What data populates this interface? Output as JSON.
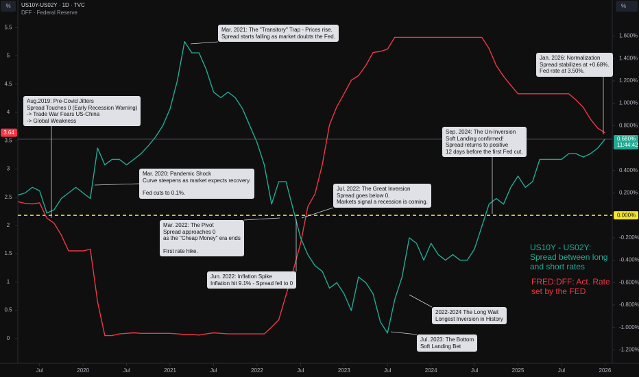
{
  "chart_data": {
    "type": "line",
    "title": "US10Y-US02Y · 1D · TVC",
    "subtitle": "DFF · Federal Reserve",
    "unit_buttons": [
      "%",
      "%"
    ],
    "x": [
      "2019-04",
      "2019-05",
      "2019-06",
      "2019-07",
      "2019-08",
      "2019-09",
      "2019-10",
      "2019-11",
      "2019-12",
      "2020-01",
      "2020-02",
      "2020-03",
      "2020-04",
      "2020-05",
      "2020-06",
      "2020-07",
      "2020-08",
      "2020-09",
      "2020-10",
      "2020-11",
      "2020-12",
      "2021-01",
      "2021-02",
      "2021-03",
      "2021-04",
      "2021-05",
      "2021-06",
      "2021-07",
      "2021-08",
      "2021-09",
      "2021-10",
      "2021-11",
      "2021-12",
      "2022-01",
      "2022-02",
      "2022-03",
      "2022-04",
      "2022-05",
      "2022-06",
      "2022-07",
      "2022-08",
      "2022-09",
      "2022-10",
      "2022-11",
      "2022-12",
      "2023-01",
      "2023-02",
      "2023-03",
      "2023-04",
      "2023-05",
      "2023-06",
      "2023-07",
      "2023-08",
      "2023-09",
      "2023-10",
      "2023-11",
      "2023-12",
      "2024-01",
      "2024-02",
      "2024-03",
      "2024-04",
      "2024-05",
      "2024-06",
      "2024-07",
      "2024-08",
      "2024-09",
      "2024-10",
      "2024-11",
      "2024-12",
      "2025-01",
      "2025-02",
      "2025-03",
      "2025-04",
      "2025-05",
      "2025-06",
      "2025-07",
      "2025-08",
      "2025-09",
      "2025-10",
      "2025-11",
      "2025-12",
      "2026-01"
    ],
    "xlim": [
      "2019-04",
      "2026-02"
    ],
    "xticks": [
      {
        "value": "2019-07",
        "label": "Jul"
      },
      {
        "value": "2020-01",
        "label": "2020"
      },
      {
        "value": "2020-07",
        "label": "Jul"
      },
      {
        "value": "2021-01",
        "label": "2021"
      },
      {
        "value": "2021-07",
        "label": "Jul"
      },
      {
        "value": "2022-01",
        "label": "2022"
      },
      {
        "value": "2022-07",
        "label": "Jul"
      },
      {
        "value": "2023-01",
        "label": "2023"
      },
      {
        "value": "2023-07",
        "label": "Jul"
      },
      {
        "value": "2024-01",
        "label": "2024"
      },
      {
        "value": "2024-07",
        "label": "Jul"
      },
      {
        "value": "2025-01",
        "label": "2025"
      },
      {
        "value": "2025-07",
        "label": "Jul"
      },
      {
        "value": "2026-01",
        "label": "2026"
      }
    ],
    "ylim": [
      -0.44,
      5.65
    ],
    "yticks": [
      0,
      0.5,
      1,
      1.5,
      2,
      2.5,
      3,
      3.5,
      4,
      4.5,
      5,
      5.5
    ],
    "y2lim": [
      -1.32,
      1.75
    ],
    "y2ticks": [
      {
        "value": 1.6,
        "label": "1.600%"
      },
      {
        "value": 1.4,
        "label": "1.400%"
      },
      {
        "value": 1.2,
        "label": "1.200%"
      },
      {
        "value": 1.0,
        "label": "1.000%"
      },
      {
        "value": 0.8,
        "label": "0.800%"
      },
      {
        "value": 0.6,
        "label": "0.600%"
      },
      {
        "value": 0.4,
        "label": "0.400%"
      },
      {
        "value": 0.2,
        "label": "0.200%"
      },
      {
        "value": -0.2,
        "label": "-0.200%"
      },
      {
        "value": -0.4,
        "label": "-0.400%"
      },
      {
        "value": -0.6,
        "label": "-0.600%"
      },
      {
        "value": -0.8,
        "label": "-0.800%"
      },
      {
        "value": -1.0,
        "label": "-1.000%"
      },
      {
        "value": -1.2,
        "label": "-1.200%"
      }
    ],
    "grid": false,
    "reference_line": {
      "value": 0,
      "label": "0.000%",
      "color": "#f5e52b"
    },
    "series": [
      {
        "name": "FRED:DFF: Act. Rate set by the FED",
        "color": "#f23645",
        "axis": "y",
        "last_label": "3.64",
        "values": [
          2.42,
          2.39,
          2.38,
          2.4,
          2.13,
          2.04,
          1.83,
          1.55,
          1.55,
          1.55,
          1.58,
          0.65,
          0.05,
          0.05,
          0.08,
          0.09,
          0.1,
          0.09,
          0.09,
          0.09,
          0.09,
          0.09,
          0.08,
          0.07,
          0.07,
          0.06,
          0.08,
          0.1,
          0.09,
          0.08,
          0.08,
          0.08,
          0.08,
          0.08,
          0.08,
          0.2,
          0.33,
          0.77,
          1.21,
          1.68,
          2.33,
          2.56,
          3.08,
          3.78,
          4.1,
          4.33,
          4.57,
          4.65,
          4.83,
          5.06,
          5.08,
          5.12,
          5.33,
          5.33,
          5.33,
          5.33,
          5.33,
          5.33,
          5.33,
          5.33,
          5.33,
          5.33,
          5.33,
          5.33,
          5.33,
          5.13,
          4.83,
          4.64,
          4.48,
          4.33,
          4.33,
          4.33,
          4.33,
          4.33,
          4.33,
          4.33,
          4.33,
          4.22,
          4.09,
          3.88,
          3.72,
          3.64
        ]
      },
      {
        "name": "US10Y - US02Y: Spread between long and short rates",
        "color": "#22ab94",
        "axis": "y2",
        "last_label": "0.680%",
        "countdown": "11:44:42",
        "values": [
          0.18,
          0.2,
          0.25,
          0.22,
          0.02,
          0.05,
          0.15,
          0.2,
          0.25,
          0.2,
          0.15,
          0.6,
          0.45,
          0.5,
          0.5,
          0.45,
          0.5,
          0.55,
          0.62,
          0.7,
          0.8,
          0.95,
          1.2,
          1.55,
          1.45,
          1.45,
          1.3,
          1.1,
          1.05,
          1.1,
          1.05,
          0.95,
          0.8,
          0.65,
          0.45,
          0.1,
          0.3,
          0.3,
          0.05,
          -0.2,
          -0.35,
          -0.45,
          -0.5,
          -0.65,
          -0.6,
          -0.7,
          -0.85,
          -0.55,
          -0.6,
          -0.7,
          -0.95,
          -1.05,
          -0.75,
          -0.55,
          -0.2,
          -0.25,
          -0.4,
          -0.25,
          -0.35,
          -0.4,
          -0.35,
          -0.4,
          -0.4,
          -0.3,
          -0.1,
          0.1,
          0.15,
          0.1,
          0.25,
          0.35,
          0.25,
          0.3,
          0.5,
          0.5,
          0.5,
          0.5,
          0.55,
          0.55,
          0.52,
          0.55,
          0.6,
          0.68
        ]
      }
    ],
    "annotations": [
      {
        "paragraphs": [
          [
            "Aug.2019: Pre-Covid Jitters",
            "Spread Touches 0 (Early Recession Warning)",
            "-> Trade War Fears US-China",
            "-> Global Weakness"
          ]
        ]
      },
      {
        "paragraphs": [
          [
            "Mar. 2021: The \"Transitory\" Trap - Prices rise.",
            "Spread starts falling as market doubts the Fed."
          ]
        ]
      },
      {
        "paragraphs": [
          [
            "Mar. 2020: Pandemic Shock",
            "Curve steepens as market expects recovery."
          ],
          [
            "Fed cuts to 0.1%."
          ]
        ]
      },
      {
        "paragraphs": [
          [
            "Mar. 2022: The Pivot",
            "Spread approaches 0",
            "as the \"Cheap Money\" era ends"
          ],
          [
            "First rate hike."
          ]
        ]
      },
      {
        "paragraphs": [
          [
            "Jul. 2022: The Great Inversion",
            "Spread goes below 0.",
            "Markets signal a recession is coming."
          ]
        ]
      },
      {
        "paragraphs": [
          [
            "Jun. 2022: Inflation Spike",
            "Inflation hit 9.1% - Spread fell to 0"
          ]
        ]
      },
      {
        "paragraphs": [
          [
            "Sep. 2024: The Un-Inversion",
            "Soft Landing confirmed!",
            "Spread returns to positive",
            "12 days before the first Fed cut."
          ]
        ]
      },
      {
        "paragraphs": [
          [
            "Jan. 2026: Normalization",
            "Spread stabilizes at +0.68%.",
            "Fed rate at 3.50%."
          ]
        ]
      },
      {
        "paragraphs": [
          [
            "2022-2024 The Long Wait",
            "Longest Inversion in History"
          ]
        ]
      },
      {
        "paragraphs": [
          [
            "Jul. 2023: The Bottom",
            "Soft Landing Bet"
          ]
        ]
      }
    ]
  }
}
